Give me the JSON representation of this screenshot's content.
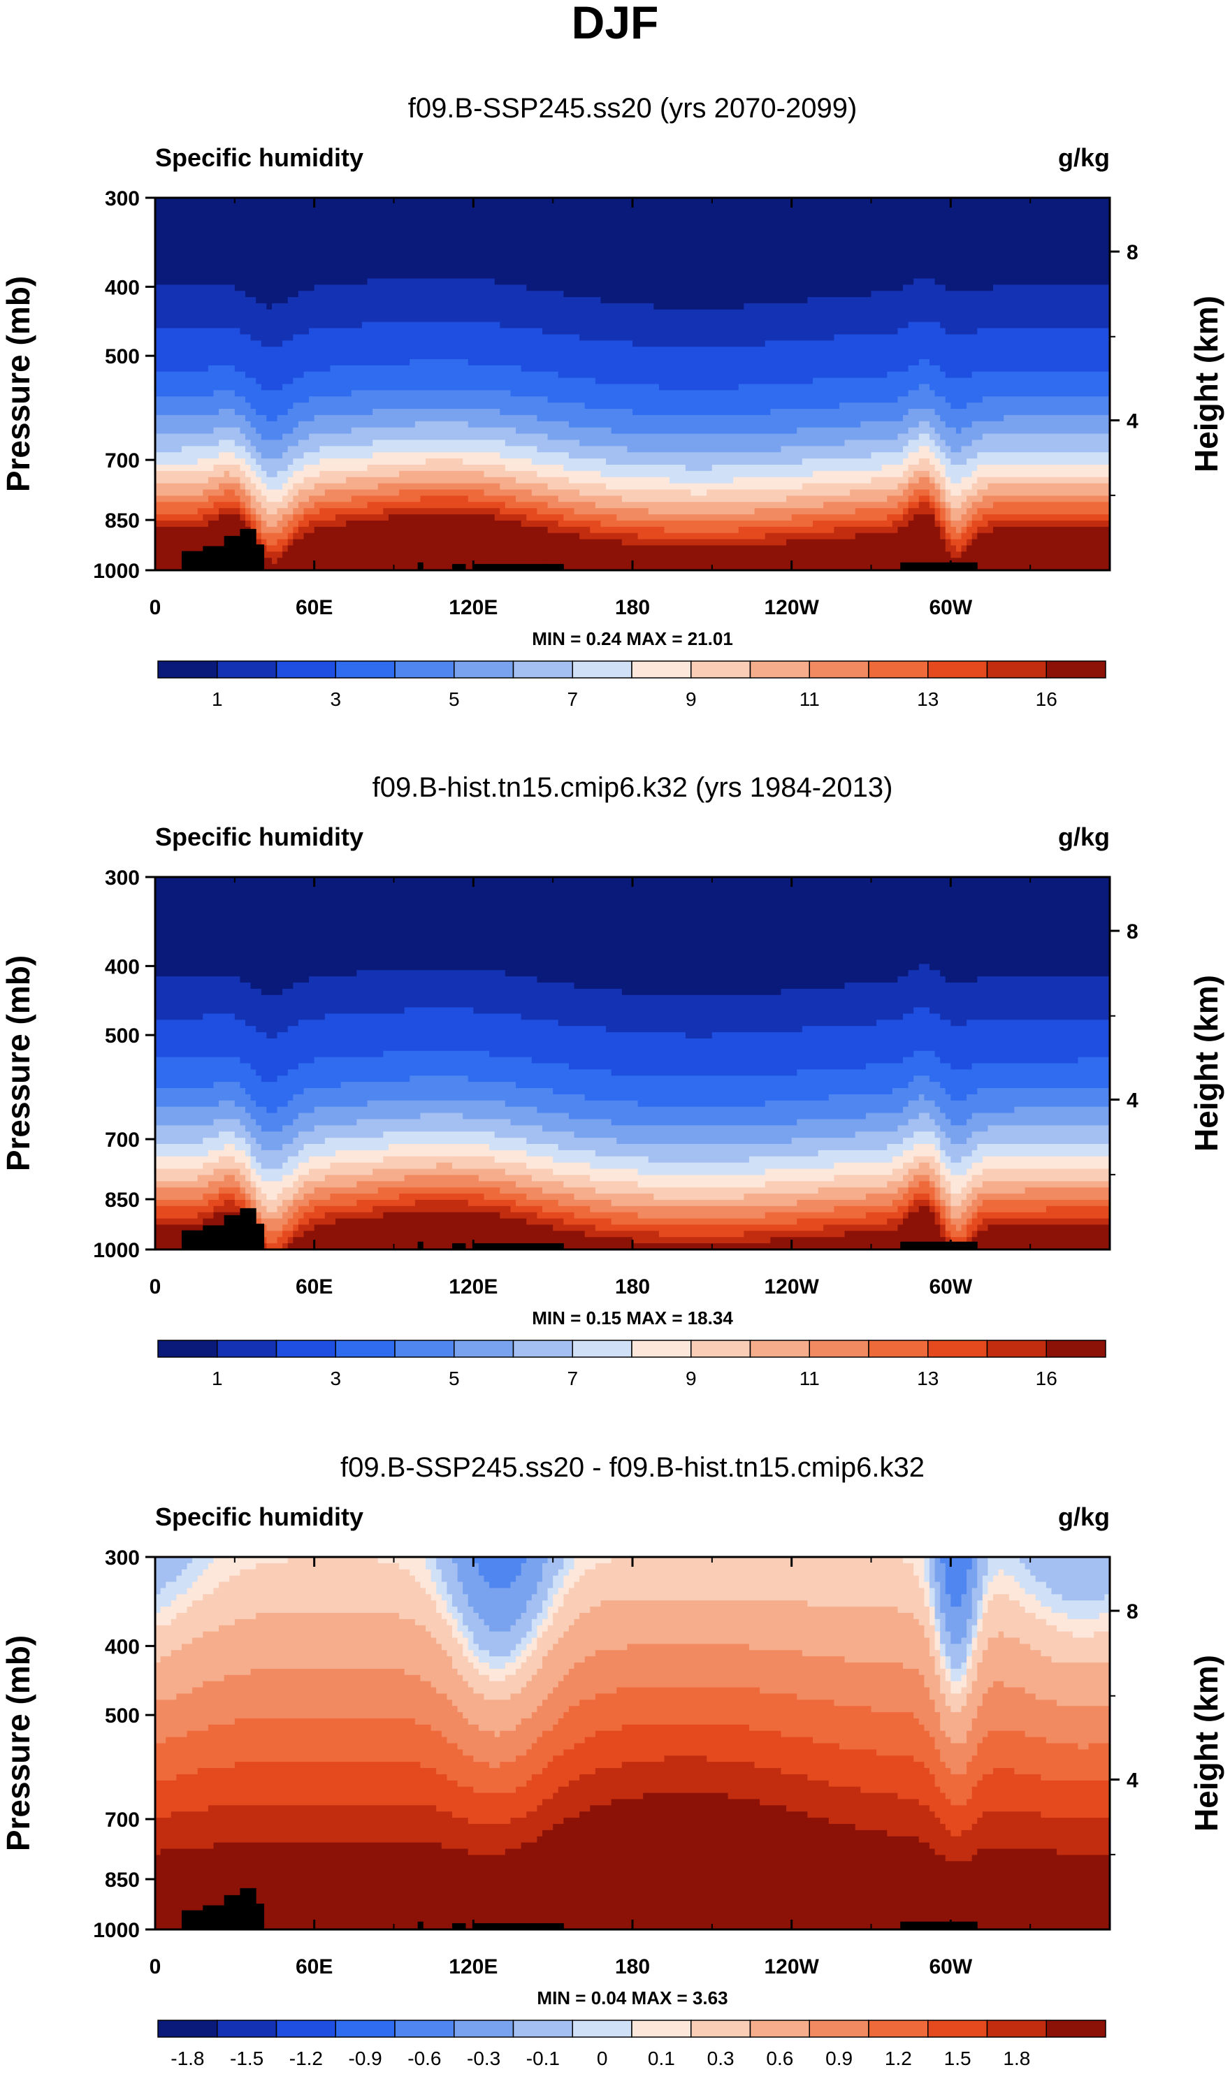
{
  "figure": {
    "title": "DJF"
  },
  "palettes": {
    "absolute": [
      "#0a1a7a",
      "#1433b4",
      "#1f4fe0",
      "#2f6cf0",
      "#4f86f0",
      "#7aa3ef",
      "#a4c0f2",
      "#cfe0f7",
      "#fde7da",
      "#f9cdb6",
      "#f6ad8c",
      "#f28a61",
      "#ef6a3a",
      "#e44a1e",
      "#c22d10",
      "#8c1208"
    ],
    "difference": [
      "#0a1a7a",
      "#1433b4",
      "#1f4fe0",
      "#2f6cf0",
      "#4f86f0",
      "#7aa3ef",
      "#a4c0f2",
      "#cfe0f7",
      "#fde7da",
      "#f9cdb6",
      "#f6ad8c",
      "#f28a61",
      "#ef6a3a",
      "#e44a1e",
      "#c22d10",
      "#8c1208"
    ],
    "terrain": "#000000"
  },
  "chart_data": [
    {
      "type": "heatmap",
      "title": "f09.B-SSP245.ss20 (yrs 2070-2099)",
      "left_string": "Specific humidity",
      "right_string": "g/kg",
      "ylabel": "Pressure (mb)",
      "ylabel_right": "Height (km)",
      "x_ticks": [
        "0",
        "60E",
        "120E",
        "180",
        "120W",
        "60W"
      ],
      "x_tick_values": [
        0,
        60,
        120,
        180,
        240,
        300
      ],
      "xlim": [
        0,
        360
      ],
      "y_ticks": [
        "300",
        "400",
        "500",
        "700",
        "850",
        "1000"
      ],
      "y_tick_values": [
        300,
        400,
        500,
        700,
        850,
        1000
      ],
      "ylim": [
        1000,
        300
      ],
      "height_ticks": [
        "8",
        "4"
      ],
      "height_tick_values": [
        8,
        4
      ],
      "stats": "MIN =   0.24  MAX =  21.01",
      "colorbar_labels": [
        "1",
        "3",
        "5",
        "7",
        "9",
        "11",
        "13",
        "16"
      ],
      "palette": "absolute",
      "field": "abs_future"
    },
    {
      "type": "heatmap",
      "title": "f09.B-hist.tn15.cmip6.k32 (yrs 1984-2013)",
      "left_string": "Specific humidity",
      "right_string": "g/kg",
      "ylabel": "Pressure (mb)",
      "ylabel_right": "Height (km)",
      "x_ticks": [
        "0",
        "60E",
        "120E",
        "180",
        "120W",
        "60W"
      ],
      "x_tick_values": [
        0,
        60,
        120,
        180,
        240,
        300
      ],
      "xlim": [
        0,
        360
      ],
      "y_ticks": [
        "300",
        "400",
        "500",
        "700",
        "850",
        "1000"
      ],
      "y_tick_values": [
        300,
        400,
        500,
        700,
        850,
        1000
      ],
      "ylim": [
        1000,
        300
      ],
      "height_ticks": [
        "8",
        "4"
      ],
      "height_tick_values": [
        8,
        4
      ],
      "stats": "MIN =   0.15  MAX =  18.34",
      "colorbar_labels": [
        "1",
        "3",
        "5",
        "7",
        "9",
        "11",
        "13",
        "16"
      ],
      "palette": "absolute",
      "field": "abs_hist"
    },
    {
      "type": "heatmap",
      "title": "f09.B-SSP245.ss20 - f09.B-hist.tn15.cmip6.k32",
      "left_string": "Specific humidity",
      "right_string": "g/kg",
      "ylabel": "Pressure (mb)",
      "ylabel_right": "Height (km)",
      "x_ticks": [
        "0",
        "60E",
        "120E",
        "180",
        "120W",
        "60W"
      ],
      "x_tick_values": [
        0,
        60,
        120,
        180,
        240,
        300
      ],
      "xlim": [
        0,
        360
      ],
      "y_ticks": [
        "300",
        "400",
        "500",
        "700",
        "850",
        "1000"
      ],
      "y_tick_values": [
        300,
        400,
        500,
        700,
        850,
        1000
      ],
      "ylim": [
        1000,
        300
      ],
      "height_ticks": [
        "8",
        "4"
      ],
      "height_tick_values": [
        8,
        4
      ],
      "stats": "MIN =   0.04  MAX =  3.63",
      "colorbar_labels": [
        "-1.8",
        "-1.5",
        "-1.2",
        "-0.9",
        "-0.6",
        "-0.3",
        "-0.1",
        "0",
        "0.1",
        "0.3",
        "0.6",
        "0.9",
        "1.2",
        "1.5",
        "1.8"
      ],
      "palette": "difference",
      "field": "diff"
    }
  ]
}
